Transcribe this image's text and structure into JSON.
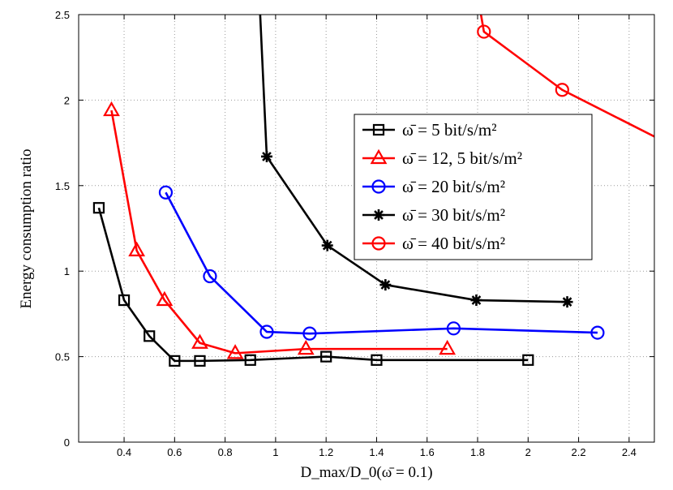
{
  "chart_data": {
    "type": "line",
    "title": "",
    "xlabel": "D_max/D_0(ω̄ = 0.1)",
    "ylabel": "Energy consumption ratio",
    "xlim": [
      0.22,
      2.5
    ],
    "ylim": [
      0,
      2.5
    ],
    "x_ticks": [
      "0.4",
      "0.6",
      "0.8",
      "1",
      "1.2",
      "1.4",
      "1.6",
      "1.8",
      "2",
      "2.2",
      "2.4"
    ],
    "y_ticks": [
      "0",
      "0.5",
      "1",
      "1.5",
      "2",
      "2.5"
    ],
    "grid": true,
    "legend_position": "top-right",
    "series": [
      {
        "name": "ω̄ = 5 bit/s/m²",
        "color": "#000000",
        "marker": "square",
        "x": [
          0.3,
          0.4,
          0.5,
          0.6,
          0.7,
          0.9,
          1.2,
          1.4,
          2.0
        ],
        "y": [
          1.37,
          0.83,
          0.62,
          0.475,
          0.475,
          0.48,
          0.5,
          0.48,
          0.48
        ]
      },
      {
        "name": "ω̄ = 12, 5 bit/s/m²",
        "color": "#ff0000",
        "marker": "triangle",
        "x": [
          0.35,
          0.45,
          0.56,
          0.7,
          0.84,
          1.12,
          1.68
        ],
        "y": [
          1.94,
          1.12,
          0.83,
          0.58,
          0.52,
          0.545,
          0.545
        ]
      },
      {
        "name": "ω̄ = 20 bit/s/m²",
        "color": "#0000ff",
        "marker": "circle",
        "x": [
          0.565,
          0.74,
          0.965,
          1.135,
          1.705,
          2.275
        ],
        "y": [
          1.46,
          0.97,
          0.645,
          0.635,
          0.665,
          0.64
        ]
      },
      {
        "name": "ω̄ = 30 bit/s/m²",
        "color": "#000000",
        "marker": "star",
        "x": [
          0.965,
          1.205,
          1.435,
          1.795,
          2.155
        ],
        "y": [
          1.67,
          1.15,
          0.92,
          0.83,
          0.82
        ]
      },
      {
        "name": "ω̄ = 40 bit/s/m²",
        "color": "#ff0000",
        "marker": "circle",
        "x": [
          1.825,
          2.135
        ],
        "y": [
          2.4,
          2.06
        ]
      }
    ],
    "offscreen_lines": [
      {
        "series_index": 3,
        "from": [
          0.965,
          1.67
        ],
        "to": [
          0.92,
          3.1
        ]
      },
      {
        "series_index": 4,
        "from": [
          1.825,
          2.4
        ],
        "to": [
          1.79,
          2.7
        ]
      },
      {
        "series_index": 4,
        "from": [
          2.135,
          2.06
        ],
        "to": [
          2.75,
          1.6
        ]
      }
    ]
  }
}
